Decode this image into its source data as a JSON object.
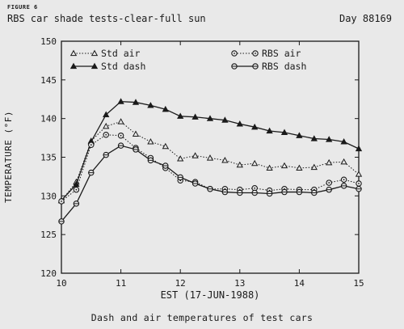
{
  "figure_label": "FIGURE 6",
  "caption": "Dash and air temperatures of test cars",
  "chart_data": {
    "type": "line",
    "title": "RBS car shade tests-clear-full sun",
    "subtitle": "Day 88169",
    "xlabel": "EST (17-JUN-1988)",
    "ylabel": "TEMPERATURE (°F)",
    "xlim": [
      10,
      15
    ],
    "ylim": [
      120,
      150
    ],
    "x_ticks": [
      10,
      11,
      12,
      13,
      14,
      15
    ],
    "y_ticks": [
      120,
      125,
      130,
      135,
      140,
      145,
      150
    ],
    "grid": false,
    "legend_placement": "top",
    "x": [
      10,
      10.25,
      10.5,
      10.75,
      11,
      11.25,
      11.5,
      11.75,
      12,
      12.25,
      12.5,
      12.75,
      13,
      13.25,
      13.5,
      13.75,
      14,
      14.25,
      14.5,
      14.75,
      15
    ],
    "series": [
      {
        "name": "Std air",
        "marker": "open-triangle",
        "line": "dotted",
        "values": [
          129.4,
          131.8,
          137.1,
          139.0,
          139.6,
          138.0,
          137.0,
          136.4,
          134.8,
          135.2,
          134.9,
          134.6,
          134.0,
          134.2,
          133.6,
          133.9,
          133.6,
          133.7,
          134.3,
          134.4,
          132.8
        ]
      },
      {
        "name": "Std dash",
        "marker": "filled-triangle",
        "line": "solid",
        "values": [
          129.4,
          131.5,
          137.0,
          140.5,
          142.2,
          142.1,
          141.7,
          141.2,
          140.3,
          140.2,
          140.0,
          139.8,
          139.3,
          138.9,
          138.4,
          138.2,
          137.8,
          137.4,
          137.3,
          137.0,
          136.1
        ]
      },
      {
        "name": "RBS air",
        "marker": "open-circle",
        "line": "dotted",
        "values": [
          129.3,
          130.8,
          136.6,
          137.9,
          137.8,
          136.2,
          134.9,
          133.6,
          132.0,
          131.8,
          130.9,
          130.9,
          130.8,
          131.0,
          130.7,
          130.9,
          130.8,
          130.8,
          131.7,
          132.1,
          131.6
        ]
      },
      {
        "name": "RBS dash",
        "marker": "dot-circle",
        "line": "solid",
        "values": [
          126.7,
          129.0,
          133.0,
          135.3,
          136.5,
          136.0,
          134.6,
          133.9,
          132.4,
          131.6,
          130.9,
          130.5,
          130.4,
          130.4,
          130.3,
          130.5,
          130.5,
          130.4,
          130.8,
          131.3,
          130.9
        ]
      }
    ]
  }
}
